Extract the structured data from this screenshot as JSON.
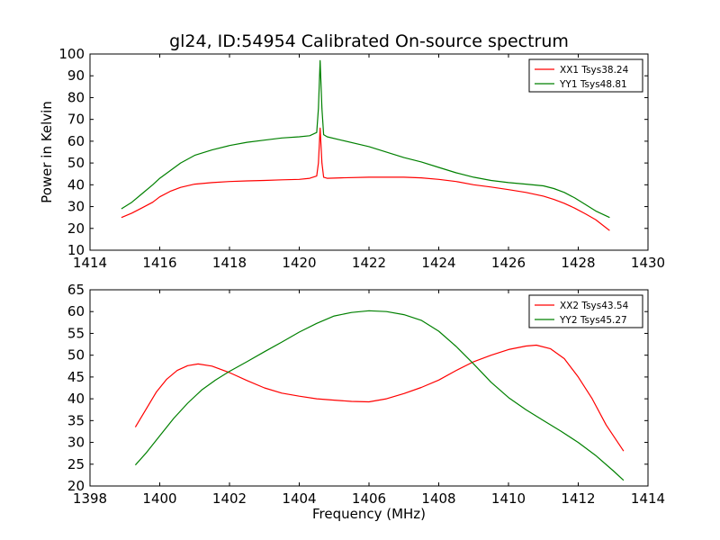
{
  "title": "gl24, ID:54954 Calibrated On-source spectrum",
  "colors": {
    "xx": "#ff0000",
    "yy": "#008000"
  },
  "chart_data": [
    {
      "type": "line",
      "xlabel": "",
      "ylabel": "Power in Kelvin",
      "xlim": [
        1414,
        1430
      ],
      "ylim": [
        10,
        100
      ],
      "xticks": [
        1414,
        1416,
        1418,
        1420,
        1422,
        1424,
        1426,
        1428,
        1430
      ],
      "yticks": [
        10,
        20,
        30,
        40,
        50,
        60,
        70,
        80,
        90,
        100
      ],
      "legend_position": "top-right",
      "series": [
        {
          "name": "XX1 Tsys38.24",
          "color": "#ff0000",
          "x": [
            1414.9,
            1415.2,
            1415.5,
            1415.8,
            1416.0,
            1416.3,
            1416.6,
            1417.0,
            1417.5,
            1418.0,
            1418.5,
            1419.0,
            1419.5,
            1420.0,
            1420.3,
            1420.5,
            1420.55,
            1420.6,
            1420.65,
            1420.7,
            1420.8,
            1421.2,
            1422.0,
            1423.0,
            1423.5,
            1424.0,
            1424.5,
            1425.0,
            1425.5,
            1426.0,
            1426.5,
            1427.0,
            1427.3,
            1427.6,
            1427.9,
            1428.2,
            1428.5,
            1428.9
          ],
          "y": [
            25,
            27,
            29.5,
            32,
            34.5,
            37,
            38.8,
            40.3,
            41,
            41.5,
            41.8,
            42,
            42.3,
            42.5,
            43,
            44,
            50,
            66,
            50,
            43.5,
            43,
            43.2,
            43.5,
            43.5,
            43.2,
            42.5,
            41.5,
            40,
            39,
            37.8,
            36.5,
            34.8,
            33.3,
            31.5,
            29.3,
            26.7,
            24,
            19
          ]
        },
        {
          "name": "YY1 Tsys48.81",
          "color": "#008000",
          "x": [
            1414.9,
            1415.2,
            1415.5,
            1415.8,
            1416.0,
            1416.3,
            1416.6,
            1417.0,
            1417.5,
            1418.0,
            1418.5,
            1419.0,
            1419.5,
            1420.0,
            1420.3,
            1420.5,
            1420.55,
            1420.6,
            1420.65,
            1420.7,
            1420.8,
            1421.2,
            1422.0,
            1423.0,
            1423.5,
            1424.0,
            1424.5,
            1425.0,
            1425.5,
            1426.0,
            1426.5,
            1427.0,
            1427.3,
            1427.6,
            1427.9,
            1428.2,
            1428.5,
            1428.9
          ],
          "y": [
            29,
            32,
            36,
            40,
            43,
            46.5,
            50,
            53.5,
            56,
            58,
            59.5,
            60.5,
            61.5,
            62,
            62.5,
            64,
            75,
            97,
            75,
            63,
            62,
            60.5,
            57.5,
            52.5,
            50.5,
            48,
            45.5,
            43.5,
            42,
            41,
            40.3,
            39.5,
            38.3,
            36.5,
            34,
            31,
            28,
            25
          ]
        }
      ]
    },
    {
      "type": "line",
      "xlabel": "Frequency (MHz)",
      "ylabel": "",
      "xlim": [
        1398,
        1414
      ],
      "ylim": [
        20,
        65
      ],
      "xticks": [
        1398,
        1400,
        1402,
        1404,
        1406,
        1408,
        1410,
        1412,
        1414
      ],
      "yticks": [
        20,
        25,
        30,
        35,
        40,
        45,
        50,
        55,
        60,
        65
      ],
      "legend_position": "top-right",
      "series": [
        {
          "name": "XX2 Tsys43.54",
          "color": "#ff0000",
          "x": [
            1399.3,
            1399.6,
            1399.9,
            1400.2,
            1400.5,
            1400.8,
            1401.1,
            1401.5,
            1402.0,
            1402.5,
            1403.0,
            1403.5,
            1404.0,
            1404.5,
            1405.0,
            1405.5,
            1406.0,
            1406.5,
            1407.0,
            1407.5,
            1408.0,
            1408.5,
            1409.0,
            1409.5,
            1410.0,
            1410.5,
            1410.8,
            1411.2,
            1411.6,
            1412.0,
            1412.4,
            1412.8,
            1413.3
          ],
          "y": [
            33.5,
            37.5,
            41.5,
            44.5,
            46.5,
            47.6,
            48,
            47.5,
            46,
            44.2,
            42.5,
            41.3,
            40.6,
            40,
            39.7,
            39.4,
            39.3,
            40,
            41.2,
            42.6,
            44.3,
            46.5,
            48.5,
            50,
            51.3,
            52.1,
            52.3,
            51.5,
            49.2,
            45,
            40,
            34,
            28
          ]
        },
        {
          "name": "YY2 Tsys45.27",
          "color": "#008000",
          "x": [
            1399.3,
            1399.6,
            1400.0,
            1400.4,
            1400.8,
            1401.2,
            1401.6,
            1402.0,
            1402.5,
            1403.0,
            1403.5,
            1404.0,
            1404.5,
            1405.0,
            1405.5,
            1406.0,
            1406.5,
            1407.0,
            1407.5,
            1408.0,
            1408.5,
            1409.0,
            1409.5,
            1410.0,
            1410.5,
            1411.0,
            1411.5,
            1412.0,
            1412.5,
            1413.0,
            1413.3
          ],
          "y": [
            24.8,
            27.5,
            31.5,
            35.5,
            39,
            42,
            44.3,
            46.3,
            48.5,
            50.8,
            53,
            55.3,
            57.3,
            59,
            59.8,
            60.2,
            60,
            59.3,
            58,
            55.5,
            52,
            48,
            43.8,
            40.3,
            37.5,
            35,
            32.6,
            30,
            27,
            23.5,
            21.3
          ]
        }
      ]
    }
  ]
}
